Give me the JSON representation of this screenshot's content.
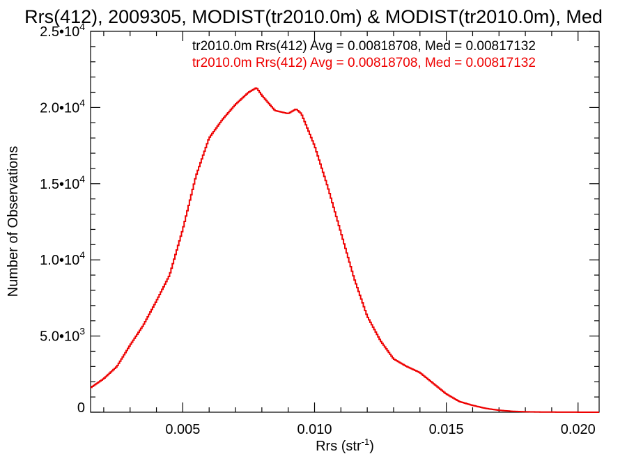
{
  "chart_data": {
    "type": "histogram",
    "title": "Rrs(412), 2009305, MODIST(tr2010.0m) & MODIST(tr2010.0m), Med",
    "xlabel": {
      "base": "Rrs (str",
      "sup": "-1",
      "tail": ")"
    },
    "ylabel": "Number of Observations",
    "xlim": [
      0.0015,
      0.0208
    ],
    "ylim": [
      0,
      25000
    ],
    "grid": false,
    "x_ticks": [
      {
        "value": 0.005,
        "label": "0.005"
      },
      {
        "value": 0.01,
        "label": "0.010"
      },
      {
        "value": 0.015,
        "label": "0.015"
      },
      {
        "value": 0.02,
        "label": "0.020"
      }
    ],
    "y_ticks": [
      {
        "value": 0,
        "base": "0",
        "exp": ""
      },
      {
        "value": 5000,
        "base": "5.0•10",
        "exp": "3"
      },
      {
        "value": 10000,
        "base": "1.0•10",
        "exp": "4"
      },
      {
        "value": 15000,
        "base": "1.5•10",
        "exp": "4"
      },
      {
        "value": 20000,
        "base": "2.0•10",
        "exp": "4"
      },
      {
        "value": 25000,
        "base": "2.5•10",
        "exp": "4"
      }
    ],
    "legend": [
      {
        "text": "tr2010.0m Rrs(412) Avg = 0.00818708, Med = 0.00817132",
        "color": "#000000"
      },
      {
        "text": "tr2010.0m Rrs(412) Avg = 0.00818708, Med = 0.00817132",
        "color": "#ee0000"
      }
    ],
    "series": [
      {
        "color": "#ee0000",
        "style": "step",
        "x": [
          0.0015,
          0.002,
          0.0025,
          0.003,
          0.0035,
          0.004,
          0.0045,
          0.005,
          0.0055,
          0.006,
          0.0065,
          0.007,
          0.0075,
          0.0078,
          0.008,
          0.0085,
          0.009,
          0.0093,
          0.0095,
          0.01,
          0.0105,
          0.011,
          0.0115,
          0.012,
          0.0125,
          0.013,
          0.0135,
          0.014,
          0.0145,
          0.015,
          0.0155,
          0.016,
          0.0165,
          0.017,
          0.0175,
          0.018,
          0.0185,
          0.019,
          0.0195,
          0.02,
          0.0208
        ],
        "y": [
          1600,
          2200,
          3000,
          4400,
          5700,
          7300,
          9000,
          12000,
          15500,
          18000,
          19200,
          20200,
          21000,
          21300,
          20800,
          19800,
          19600,
          19900,
          19600,
          17500,
          14800,
          11800,
          8800,
          6300,
          4700,
          3500,
          3000,
          2600,
          1900,
          1200,
          700,
          450,
          250,
          130,
          60,
          30,
          15,
          10,
          5,
          3,
          0
        ]
      }
    ]
  }
}
